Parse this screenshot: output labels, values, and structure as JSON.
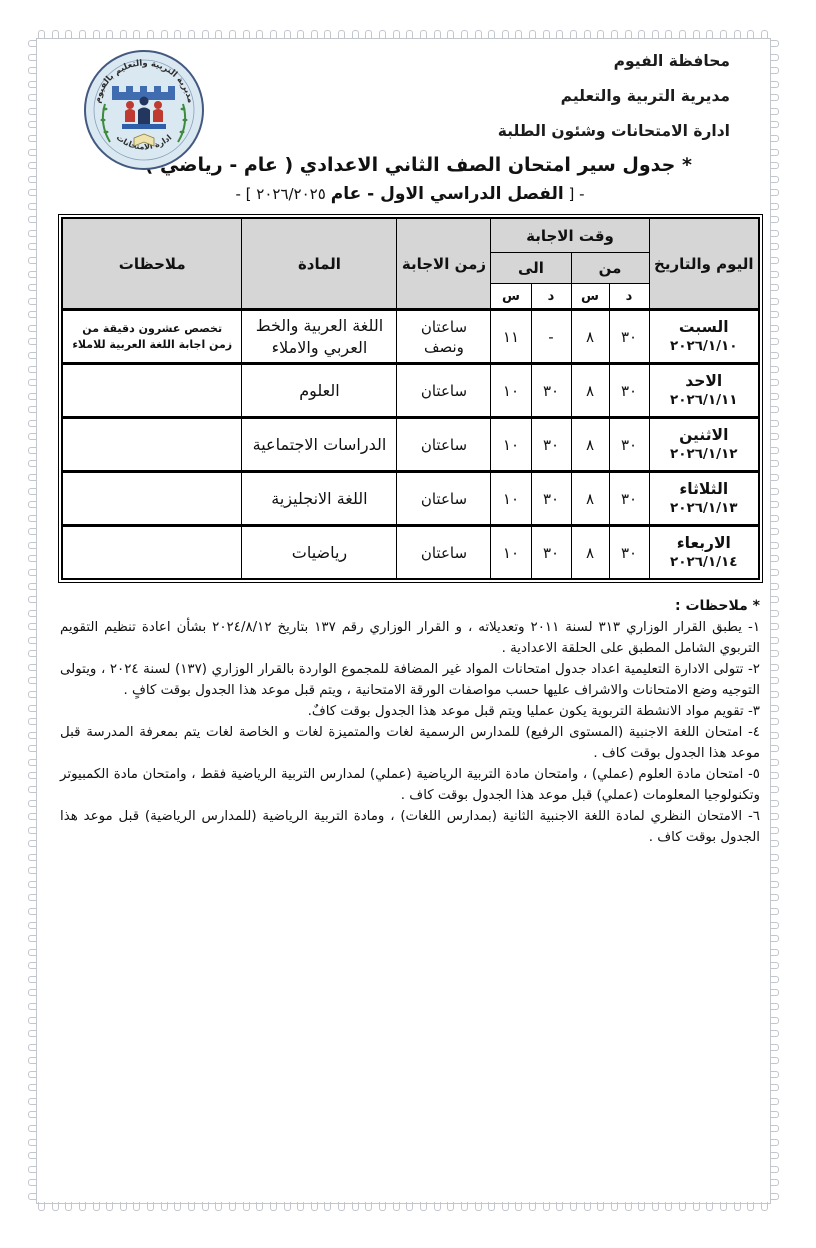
{
  "org": {
    "lines": [
      "محافظة الفيوم",
      "مديرية التربية والتعليم",
      "ادارة الامتحانات وشئون الطلبة"
    ]
  },
  "logo": {
    "arc_top": "مديرية التربية والتعليم بالفيوم",
    "arc_bottom": "ادارة الامتحانات"
  },
  "titles": {
    "main": "* جدول سير امتحان الصف الثاني الاعدادي ( عام - رياضي ) *",
    "sub_open": "- [ ",
    "sub_label": "الفصل الدراسي الاول - عام",
    "sub_year": "٢٠٢٦/٢٠٢٥",
    "sub_close": " ] -"
  },
  "table": {
    "headers": {
      "day_date": "اليوم والتاريخ",
      "answer_time": "وقت الاجابة",
      "from": "من",
      "to": "الى",
      "hours": "س",
      "minutes": "د",
      "duration": "زمن الاجابة",
      "subject": "المادة",
      "remarks": "ملاحظات"
    },
    "rows": [
      {
        "day": "السبت",
        "date": "٢٠٢٦/١/١٠",
        "from_m": "٣٠",
        "from_h": "٨",
        "to_m": "-",
        "to_h": "١١",
        "duration": "ساعتان ونصف",
        "subject": "اللغة العربية والخط العربي والاملاء",
        "remark": "تخصص عشرون دقيقة من زمن اجابة اللغة العربية للاملاء"
      },
      {
        "day": "الاحد",
        "date": "٢٠٢٦/١/١١",
        "from_m": "٣٠",
        "from_h": "٨",
        "to_m": "٣٠",
        "to_h": "١٠",
        "duration": "ساعتان",
        "subject": "العلوم",
        "remark": ""
      },
      {
        "day": "الاثنين",
        "date": "٢٠٢٦/١/١٢",
        "from_m": "٣٠",
        "from_h": "٨",
        "to_m": "٣٠",
        "to_h": "١٠",
        "duration": "ساعتان",
        "subject": "الدراسات الاجتماعية",
        "remark": ""
      },
      {
        "day": "الثلاثاء",
        "date": "٢٠٢٦/١/١٣",
        "from_m": "٣٠",
        "from_h": "٨",
        "to_m": "٣٠",
        "to_h": "١٠",
        "duration": "ساعتان",
        "subject": "اللغة الانجليزية",
        "remark": ""
      },
      {
        "day": "الاربعاء",
        "date": "٢٠٢٦/١/١٤",
        "from_m": "٣٠",
        "from_h": "٨",
        "to_m": "٣٠",
        "to_h": "١٠",
        "duration": "ساعتان",
        "subject": "رياضيات",
        "remark": ""
      }
    ]
  },
  "notes": {
    "heading": "* ملاحظات :",
    "items": [
      "١- يطبق القرار الوزاري ٣١٣ لسنة ٢٠١١  وتعديلاته ، و القرار الوزاري رقم ١٣٧ بتاريخ ٢٠٢٤/٨/١٢ بشأن اعادة تنظيم التقويم التربوي الشامل المطبق على الحلقة الاعدادية .",
      "٢- تتولى الادارة التعليمية اعداد جدول امتحانات المواد غير المضافة للمجموع الواردة بالقرار الوزاري (١٣٧) لسنة ٢٠٢٤ ، ويتولى التوجيه وضع الامتحانات والاشراف عليها حسب مواصفات الورقة الامتحانية ، ويتم قبل موعد هذا الجدول بوقت كافٍ .",
      "٣- تقويم مواد الانشطة التربوية يكون عمليا ويتم قبل موعد هذا الجدول بوقت كافٌ.",
      "٤- امتحان اللغة الاجنبية (المستوى الرفيع) للمدارس الرسمية لغات والمتميزة لغات و الخاصة لغات يتم بمعرفة المدرسة قبل موعد هذا الجدول بوقت كاف .",
      "٥- امتحان مادة العلوم (عملي) ، وامتحان مادة التربية الرياضية (عملي)  لمدارس التربية الرياضية فقط ، وامتحان مادة الكمبيوتر وتكنولوجيا المعلومات (عملي) قبل موعد هذا الجدول بوقت كاف .",
      "٦- الامتحان النظري لمادة اللغة الاجنبية الثانية (بمدارس اللغات) ، ومادة التربية الرياضية (للمدارس الرياضية) قبل موعد هذا الجدول بوقت كاف ."
    ]
  },
  "colors": {
    "table_header_fill": "#d6d6d6",
    "border_chain": "#c2c6cd",
    "ink": "#111111"
  }
}
